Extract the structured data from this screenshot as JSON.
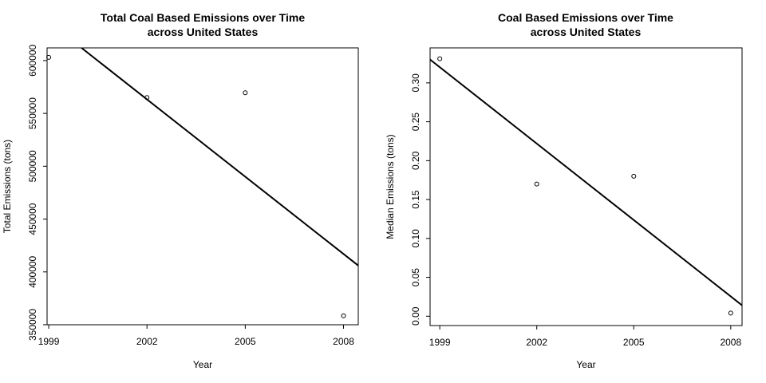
{
  "chart_data": [
    {
      "type": "scatter",
      "title": [
        "Total Coal Based Emissions over Time",
        "across United States"
      ],
      "xlabel": "Year",
      "ylabel": "Total Emissions (tons)",
      "x": [
        1999,
        2002,
        2005,
        2008
      ],
      "y": [
        603000,
        565000,
        569500,
        358500
      ],
      "xticks": [
        1999,
        2002,
        2005,
        2008
      ],
      "yticks": [
        350000,
        400000,
        450000,
        500000,
        550000,
        600000
      ],
      "xlim": [
        1998.95,
        2008.45
      ],
      "ylim": [
        350000,
        612000
      ],
      "trend_line": {
        "x": [
          2000.0,
          2008.45
        ],
        "y": [
          612000,
          406000
        ]
      },
      "grid": false,
      "legend": "none"
    },
    {
      "type": "scatter",
      "title": [
        "Coal Based Emissions over Time",
        "across United States"
      ],
      "xlabel": "Year",
      "ylabel": "Median Emissions (tons)",
      "x": [
        1999,
        2002,
        2005,
        2008
      ],
      "y": [
        0.331,
        0.17,
        0.18,
        0.004
      ],
      "xticks": [
        1999,
        2002,
        2005,
        2008
      ],
      "yticks": [
        0.0,
        0.05,
        0.1,
        0.15,
        0.2,
        0.25,
        0.3
      ],
      "xlim": [
        1998.7,
        2008.35
      ],
      "ylim": [
        -0.012,
        0.345
      ],
      "trend_line": {
        "x": [
          1998.7,
          2008.35
        ],
        "y": [
          0.33,
          0.014
        ]
      },
      "grid": false,
      "legend": "none"
    }
  ]
}
